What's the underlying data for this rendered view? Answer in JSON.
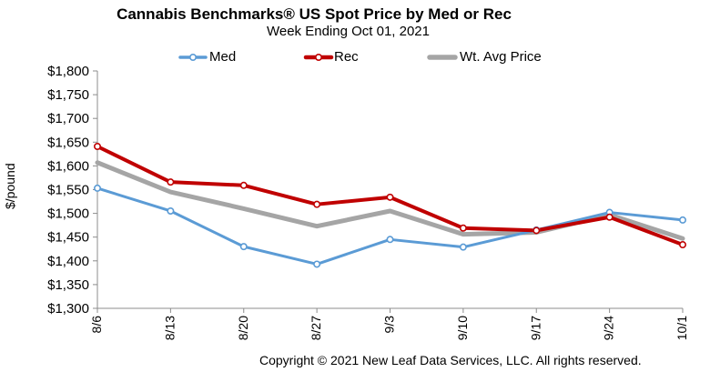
{
  "chart_data": {
    "type": "line",
    "title": "Cannabis Benchmarks® US Spot Price by Med or Rec",
    "subtitle": "Week Ending Oct 01, 2021",
    "ylabel": "$/pound",
    "xlabel": "",
    "categories": [
      "8/6",
      "8/13",
      "8/20",
      "8/27",
      "9/3",
      "9/10",
      "9/17",
      "9/24",
      "10/1"
    ],
    "ylim": [
      1300,
      1800
    ],
    "yticks": [
      "$1,300",
      "$1,350",
      "$1,400",
      "$1,450",
      "$1,500",
      "$1,550",
      "$1,600",
      "$1,650",
      "$1,700",
      "$1,750",
      "$1,800"
    ],
    "ytick_values": [
      1300,
      1350,
      1400,
      1450,
      1500,
      1550,
      1600,
      1650,
      1700,
      1750,
      1800
    ],
    "grid": false,
    "legend": "top",
    "series": [
      {
        "name": "Med",
        "color": "#5b9bd5",
        "markers": true,
        "values": [
          1553,
          1505,
          1430,
          1393,
          1445,
          1429,
          1465,
          1502,
          1486
        ]
      },
      {
        "name": "Rec",
        "color": "#c00000",
        "markers": true,
        "values": [
          1641,
          1566,
          1559,
          1519,
          1534,
          1469,
          1464,
          1492,
          1434
        ]
      },
      {
        "name": "Wt. Avg Price",
        "color": "#a5a5a5",
        "markers": false,
        "values": [
          1607,
          1545,
          1510,
          1473,
          1505,
          1456,
          1460,
          1497,
          1447
        ]
      }
    ]
  },
  "footer": "Copyright © 2021 New Leaf Data Services, LLC. All rights reserved."
}
